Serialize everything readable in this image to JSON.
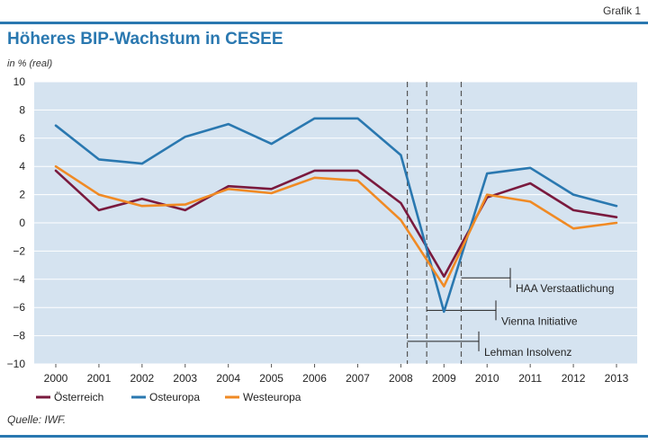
{
  "header": {
    "grafik": "Grafik 1",
    "title": "Höheres BIP-Wachstum in CESEE",
    "unit": "in % (real)"
  },
  "footer": {
    "source": "Quelle: IWF."
  },
  "colors": {
    "plot_background": "#d5e3f0",
    "accent_rule": "#2a78b0",
    "osterreich": "#7a1a3e",
    "osteuropa": "#2a78b0",
    "westeuropa": "#f08a24"
  },
  "chart_data": {
    "type": "line",
    "title": "Höheres BIP-Wachstum in CESEE",
    "ylabel": "in % (real)",
    "xlabel": "",
    "ylim": [
      -10,
      10
    ],
    "yticks": [
      "10",
      "8",
      "6",
      "4",
      "2",
      "0",
      "−2",
      "−4",
      "−6",
      "−8",
      "−10"
    ],
    "x": [
      "2000",
      "2001",
      "2002",
      "2003",
      "2004",
      "2005",
      "2006",
      "2007",
      "2008",
      "2009",
      "2010",
      "2011",
      "2012",
      "2013"
    ],
    "grid": true,
    "legend_position": "bottom-left",
    "series": [
      {
        "name": "Österreich",
        "color": "#7a1a3e",
        "values": [
          3.7,
          0.9,
          1.7,
          0.9,
          2.6,
          2.4,
          3.7,
          3.7,
          1.4,
          -3.8,
          1.8,
          2.8,
          0.9,
          0.4
        ]
      },
      {
        "name": "Osteuropa",
        "color": "#2a78b0",
        "values": [
          6.9,
          4.5,
          4.2,
          6.1,
          7.0,
          5.6,
          7.4,
          7.4,
          4.8,
          -6.3,
          3.5,
          3.9,
          2.0,
          1.2
        ]
      },
      {
        "name": "Westeuropa",
        "color": "#f08a24",
        "values": [
          4.0,
          2.0,
          1.2,
          1.3,
          2.4,
          2.1,
          3.2,
          3.0,
          0.2,
          -4.5,
          2.0,
          1.5,
          -0.4,
          0.0
        ]
      }
    ],
    "annotations": [
      {
        "label": "Lehman Insolvenz",
        "x": 2008.15,
        "y": -8.4
      },
      {
        "label": "Vienna Initiative",
        "x": 2008.6,
        "y": -6.2
      },
      {
        "label": "HAA Verstaatlichung",
        "x": 2009.4,
        "y": -3.9
      }
    ]
  }
}
